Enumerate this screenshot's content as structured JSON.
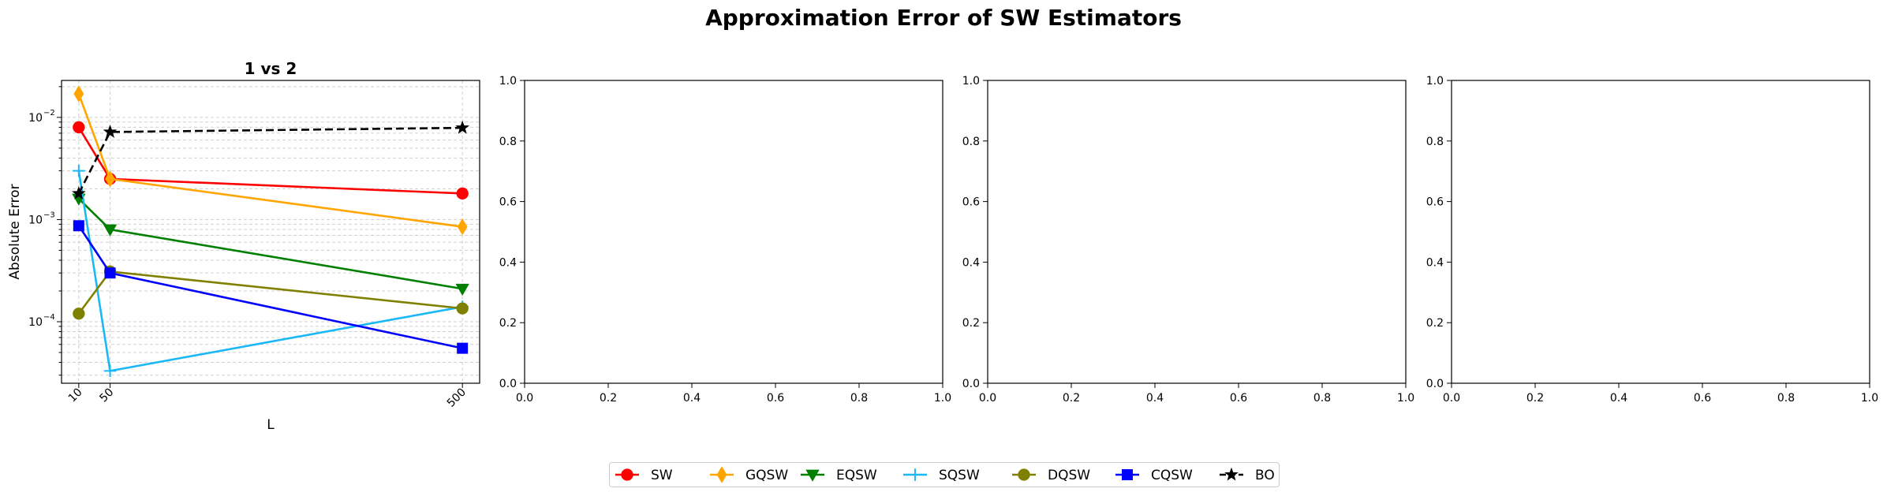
{
  "figure": {
    "title": "Approximation Error of SW Estimators"
  },
  "chart_data": [
    {
      "type": "line",
      "title": "1 vs 2",
      "xlabel": "L",
      "ylabel": "Absolute Error",
      "yscale": "log",
      "ylim": [
        2.5e-05,
        0.023
      ],
      "xlim": [
        -12,
        522
      ],
      "x": [
        10,
        50,
        500
      ],
      "xticklabels": [
        "10",
        "50",
        "500"
      ],
      "xticklabel_rotation": 45,
      "yticks": [
        {
          "value": 0.0001,
          "label": "10",
          "exp": "−4"
        },
        {
          "value": 0.001,
          "label": "10",
          "exp": "−3"
        },
        {
          "value": 0.01,
          "label": "10",
          "exp": "−2"
        }
      ],
      "grid": true,
      "series": [
        {
          "name": "SW",
          "values": [
            0.008,
            0.0025,
            0.0018
          ],
          "color": "#ff0000",
          "marker": "circle",
          "dash": false
        },
        {
          "name": "GQSW",
          "values": [
            0.017,
            0.0025,
            0.00085
          ],
          "color": "#ffa500",
          "marker": "thin_diamond",
          "dash": false
        },
        {
          "name": "EQSW",
          "values": [
            0.0016,
            0.0008,
            0.00021
          ],
          "color": "#008000",
          "marker": "triangle_down",
          "dash": false
        },
        {
          "name": "SQSW",
          "values": [
            0.003,
            3.3e-05,
            0.00014
          ],
          "color": "#1ab8f5",
          "marker": "plus",
          "dash": false
        },
        {
          "name": "DQSW",
          "values": [
            0.00012,
            0.00031,
            0.000135
          ],
          "color": "#808000",
          "marker": "circle",
          "dash": false
        },
        {
          "name": "CQSW",
          "values": [
            0.00087,
            0.0003,
            5.5e-05
          ],
          "color": "#0000ff",
          "marker": "square",
          "dash": false
        },
        {
          "name": "BO",
          "values": [
            0.0018,
            0.0072,
            0.0079
          ],
          "color": "#000000",
          "marker": "star",
          "dash": true
        }
      ]
    },
    {
      "type": "line",
      "title": "",
      "xlim": [
        0,
        1
      ],
      "ylim": [
        0,
        1
      ],
      "xticklabels": [
        "0.0",
        "0.2",
        "0.4",
        "0.6",
        "0.8",
        "1.0"
      ],
      "yticklabels": [
        "0.0",
        "0.2",
        "0.4",
        "0.6",
        "0.8",
        "1.0"
      ],
      "series": []
    },
    {
      "type": "line",
      "title": "",
      "xlim": [
        0,
        1
      ],
      "ylim": [
        0,
        1
      ],
      "xticklabels": [
        "0.0",
        "0.2",
        "0.4",
        "0.6",
        "0.8",
        "1.0"
      ],
      "yticklabels": [
        "0.0",
        "0.2",
        "0.4",
        "0.6",
        "0.8",
        "1.0"
      ],
      "series": []
    },
    {
      "type": "line",
      "title": "",
      "xlim": [
        0,
        1
      ],
      "ylim": [
        0,
        1
      ],
      "xticklabels": [
        "0.0",
        "0.2",
        "0.4",
        "0.6",
        "0.8",
        "1.0"
      ],
      "yticklabels": [
        "0.0",
        "0.2",
        "0.4",
        "0.6",
        "0.8",
        "1.0"
      ],
      "series": []
    }
  ]
}
